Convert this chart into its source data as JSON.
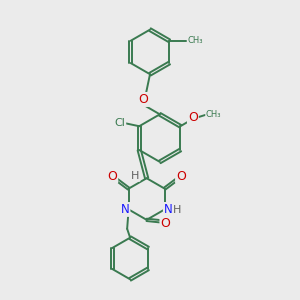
{
  "bg_color": "#ebebeb",
  "bond_color": "#3a7a50",
  "bond_width": 1.4,
  "atom_colors": {
    "O": "#cc0000",
    "N": "#1a1aff",
    "Cl": "#3a7a50",
    "C": "#3a7a50",
    "H": "#606060"
  },
  "font_size": 7.5,
  "fig_size": [
    3.0,
    3.0
  ],
  "dpi": 100,
  "xlim": [
    0,
    10
  ],
  "ylim": [
    0,
    10
  ]
}
